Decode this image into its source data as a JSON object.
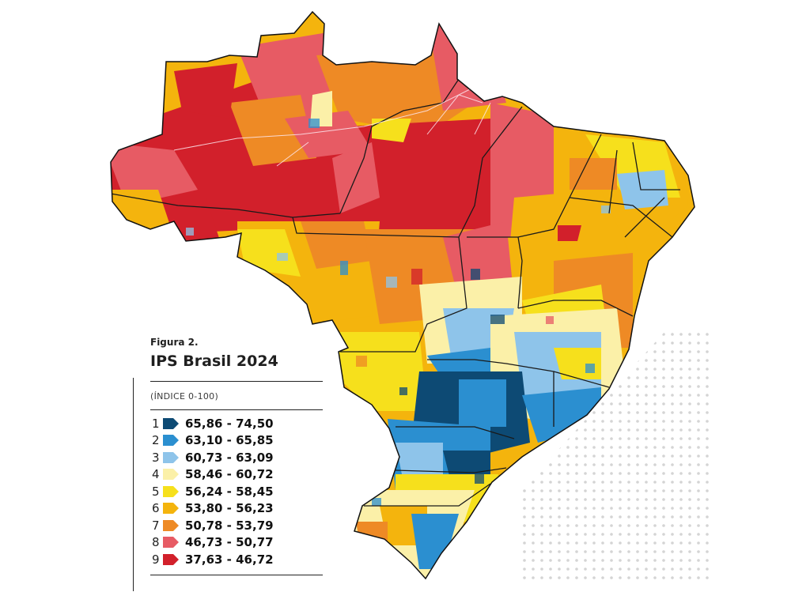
{
  "figure": {
    "label": "Figura 2.",
    "title": "IPS Brasil 2024",
    "subtitle": "(ÍNDICE 0-100)"
  },
  "legend": {
    "items": [
      {
        "n": "1",
        "range": "65,86 - 74,50",
        "color": "#0d4a74"
      },
      {
        "n": "2",
        "range": "63,10 - 65,85",
        "color": "#2b8fd0"
      },
      {
        "n": "3",
        "range": "60,73 - 63,09",
        "color": "#8ec4ea"
      },
      {
        "n": "4",
        "range": "58,46 - 60,72",
        "color": "#fbf0a8"
      },
      {
        "n": "5",
        "range": "56,24 - 58,45",
        "color": "#f6e01c"
      },
      {
        "n": "6",
        "range": "53,80 - 56,23",
        "color": "#f4b40d"
      },
      {
        "n": "7",
        "range": "50,78 - 53,79",
        "color": "#ee8a25"
      },
      {
        "n": "8",
        "range": "46,73 - 50,77",
        "color": "#e75b64"
      },
      {
        "n": "9",
        "range": "37,63 - 46,72",
        "color": "#d2202b"
      }
    ]
  }
}
